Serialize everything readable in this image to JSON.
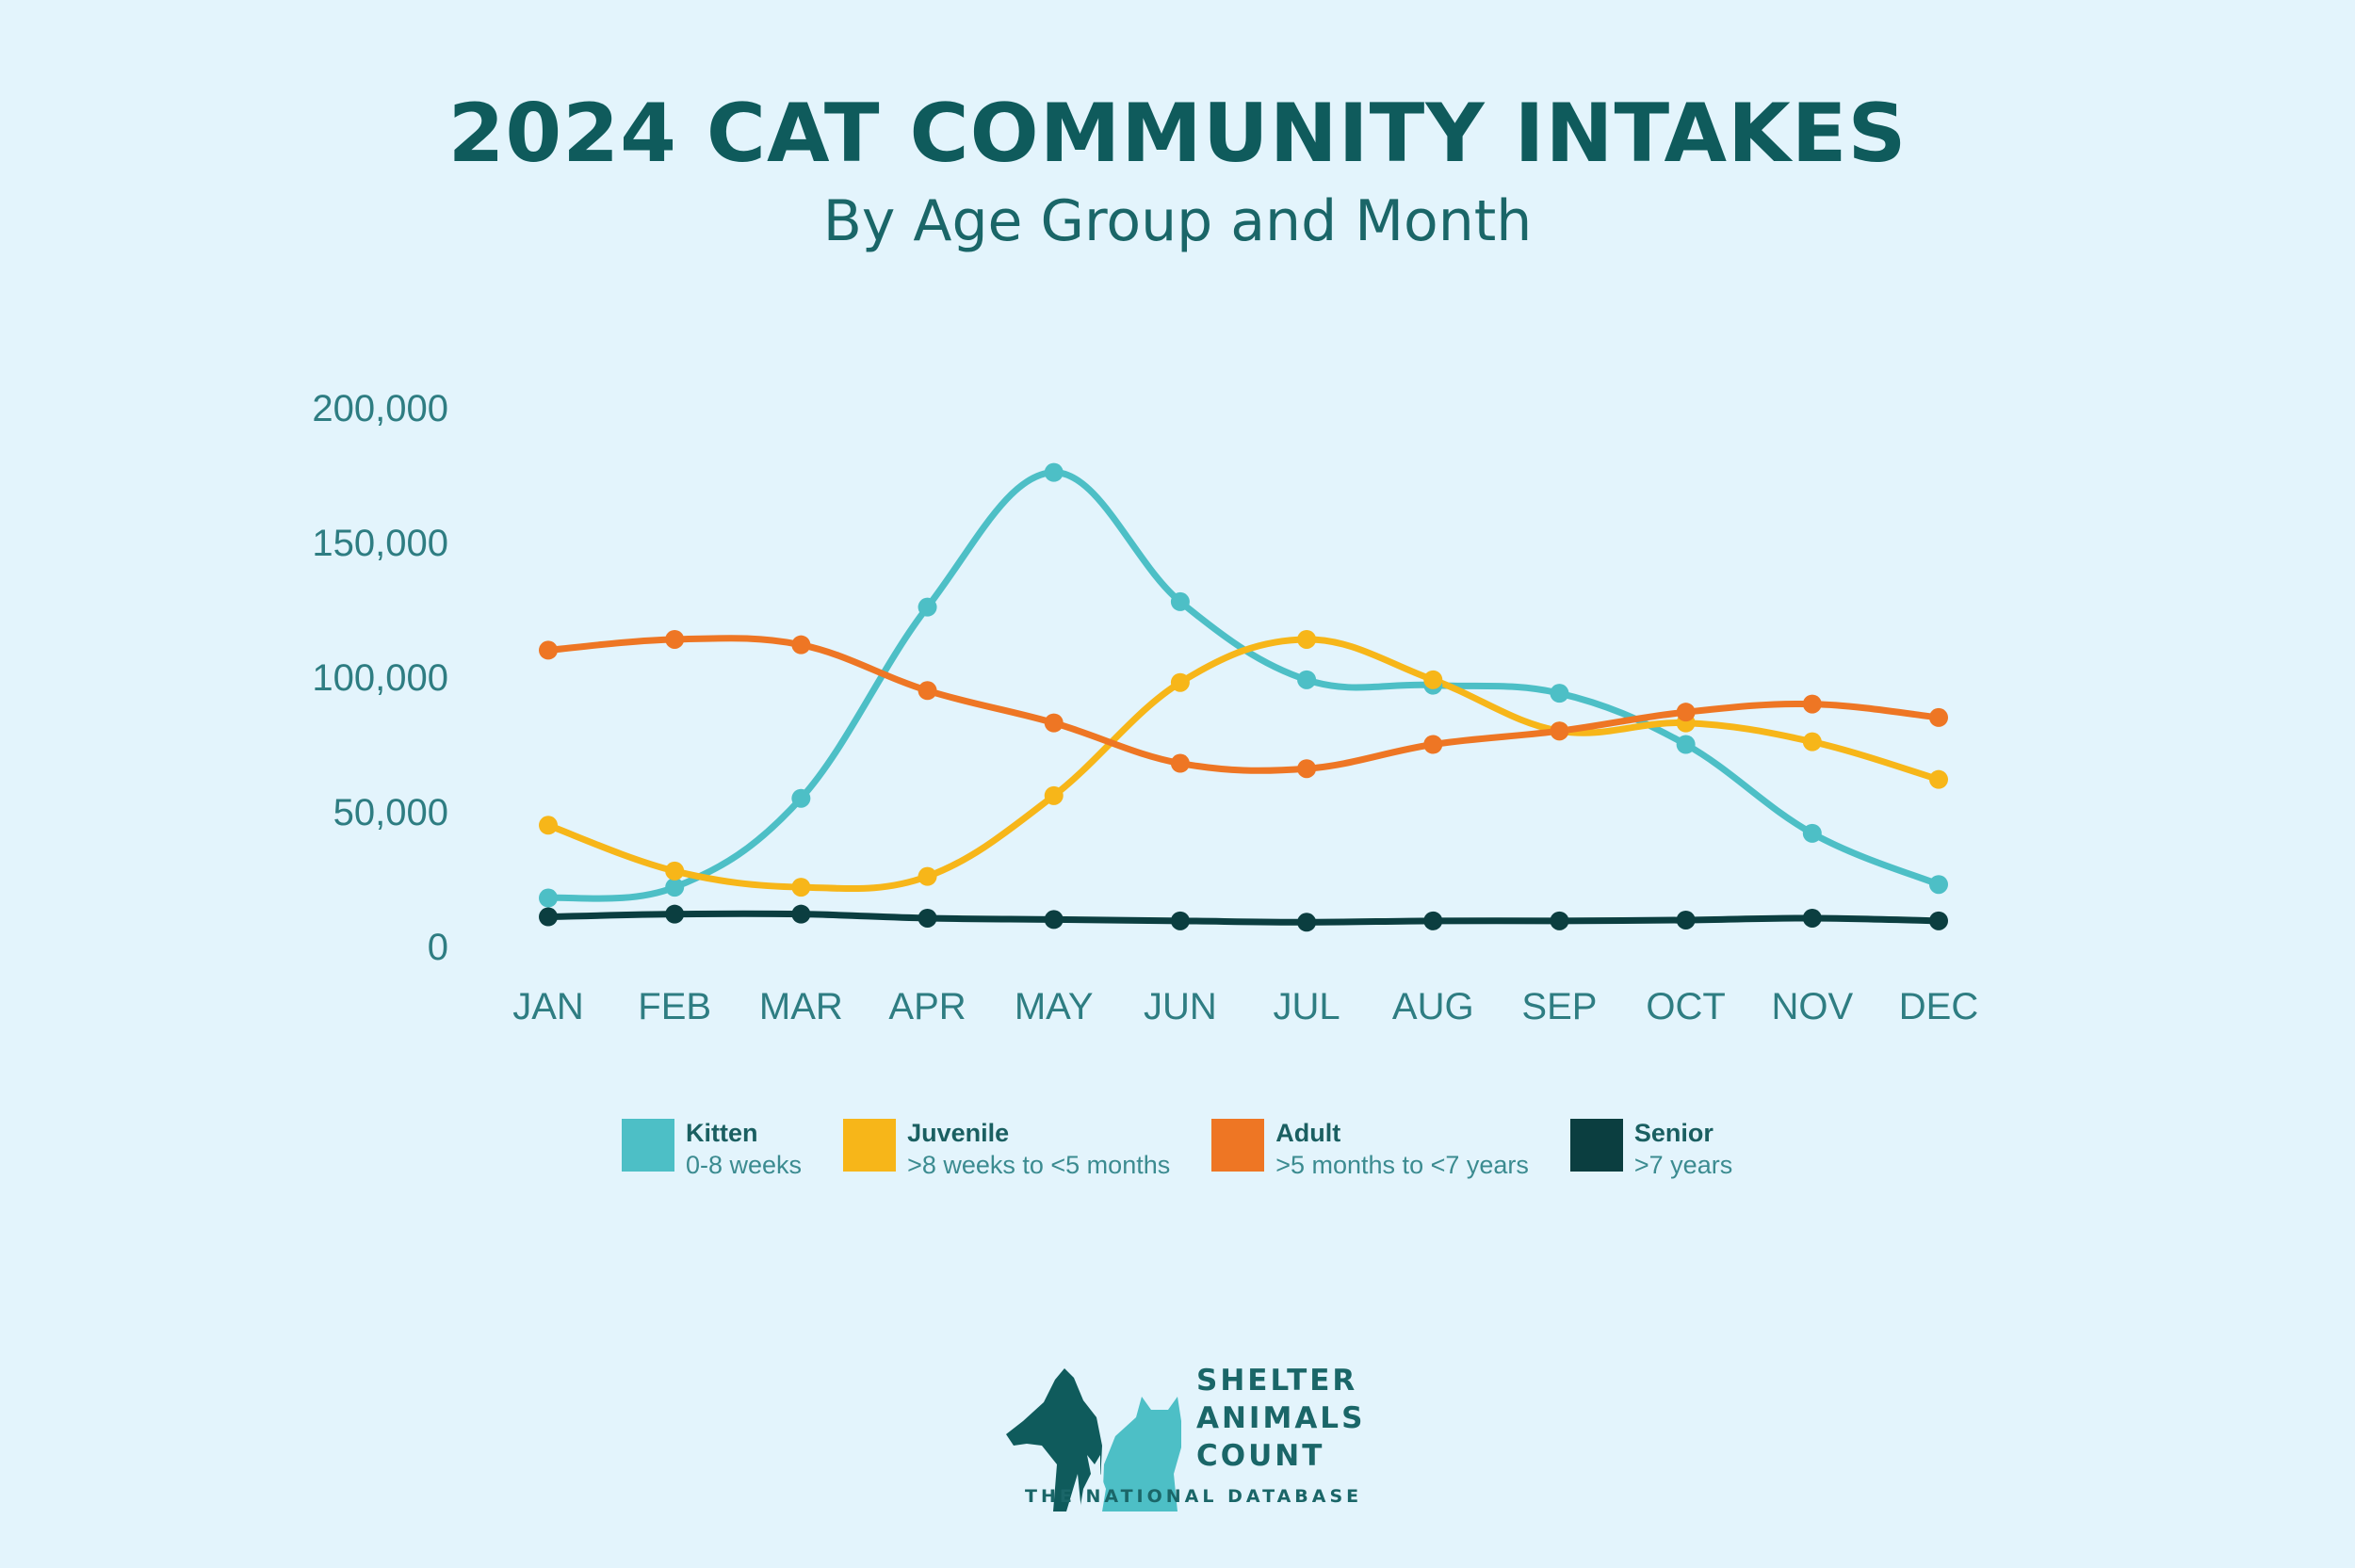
{
  "colors": {
    "background": "#e3f4fc",
    "kitten": "#4dbfc6",
    "juvenile": "#f7b619",
    "adult": "#ee7624",
    "senior": "#0b3e40"
  },
  "chart_data": {
    "type": "line",
    "title": "2024 CAT COMMUNITY INTAKES",
    "subtitle": "By Age Group and Month",
    "categories": [
      "JAN",
      "FEB",
      "MAR",
      "APR",
      "MAY",
      "JUN",
      "JUL",
      "AUG",
      "SEP",
      "OCT",
      "NOV",
      "DEC"
    ],
    "ylim": [
      0,
      200000
    ],
    "yticks": [
      0,
      50000,
      100000,
      150000,
      200000
    ],
    "ytick_labels": [
      "0",
      "50,000",
      "100,000",
      "150,000",
      "200,000"
    ],
    "grid": false,
    "series": [
      {
        "key": "kitten",
        "name": "Kitten",
        "description": "0-8 weeks",
        "values": [
          18000,
          22000,
          55000,
          126000,
          176000,
          128000,
          99000,
          97000,
          94000,
          75000,
          42000,
          23000
        ]
      },
      {
        "key": "juvenile",
        "name": "Juvenile",
        "description": ">8 weeks to <5 months",
        "values": [
          45000,
          28000,
          22000,
          26000,
          56000,
          98000,
          114000,
          99000,
          80000,
          83000,
          76000,
          62000
        ]
      },
      {
        "key": "adult",
        "name": "Adult",
        "description": ">5 months to <7 years",
        "values": [
          110000,
          114000,
          112000,
          95000,
          83000,
          68000,
          66000,
          75000,
          80000,
          87000,
          90000,
          85000
        ]
      },
      {
        "key": "senior",
        "name": "Senior",
        "description": ">7 years",
        "values": [
          11000,
          12000,
          12000,
          10500,
          10000,
          9500,
          9000,
          9500,
          9500,
          9800,
          10500,
          9500
        ]
      }
    ]
  },
  "logo": {
    "line1": "SHELTER",
    "line2": "ANIMALS",
    "line3": "COUNT",
    "tagline": "THE NATIONAL DATABASE"
  }
}
